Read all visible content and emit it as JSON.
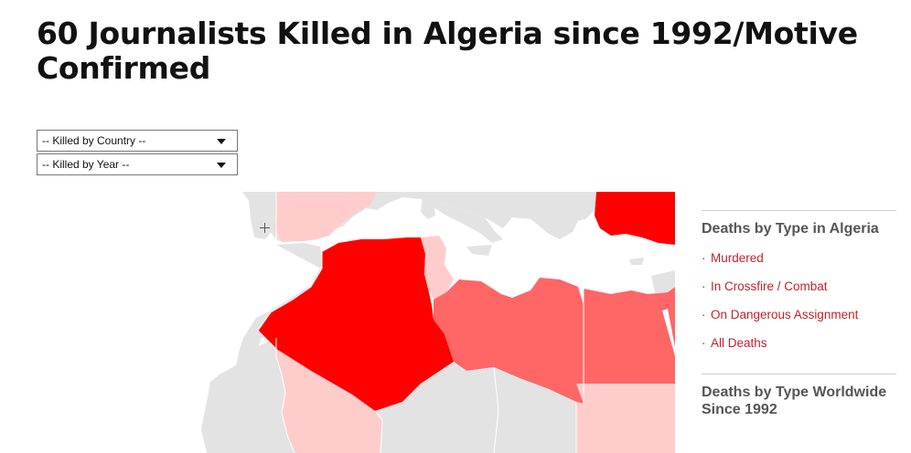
{
  "page": {
    "title": "60 Journalists Killed in Algeria since 1992/Motive Confirmed"
  },
  "filters": {
    "country_select": "-- Killed by Country --",
    "year_select": "-- Killed by Year --"
  },
  "map": {
    "colors": {
      "highlight": "#ff0000",
      "high": "#ff6666",
      "low": "#ffcccc",
      "none": "#e3e3e3",
      "water": "#ffffff"
    },
    "regions": [
      {
        "name": "Algeria",
        "level": "highlight"
      },
      {
        "name": "Turkey",
        "level": "highlight"
      },
      {
        "name": "Libya",
        "level": "high"
      },
      {
        "name": "Egypt",
        "level": "high"
      },
      {
        "name": "Tunisia",
        "level": "low"
      },
      {
        "name": "Spain",
        "level": "low"
      },
      {
        "name": "Mali",
        "level": "low"
      },
      {
        "name": "Sudan",
        "level": "low"
      }
    ]
  },
  "sidebar": {
    "algeria_heading": "Deaths by Type in Algeria",
    "items": [
      {
        "label": "Murdered"
      },
      {
        "label": "In Crossfire / Combat"
      },
      {
        "label": "On Dangerous Assignment"
      },
      {
        "label": "All Deaths"
      }
    ],
    "worldwide_heading": "Deaths by Type Worldwide Since 1992"
  }
}
